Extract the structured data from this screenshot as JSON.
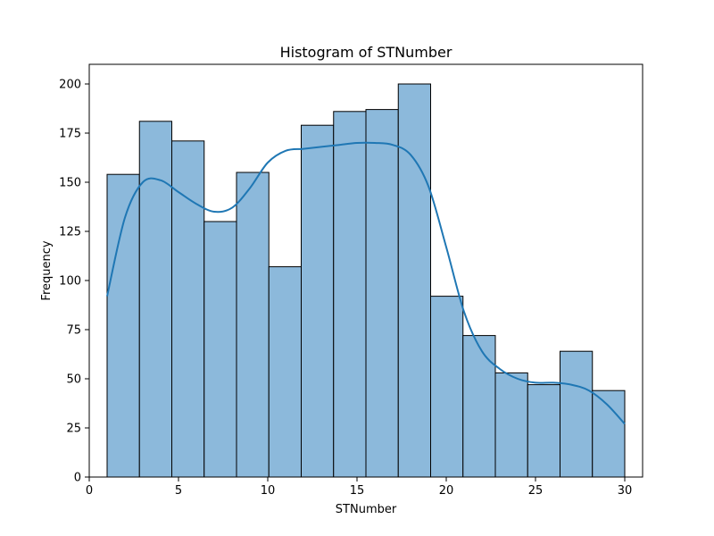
{
  "chart_data": {
    "type": "bar",
    "title": "Histogram of STNumber",
    "xlabel": "STNumber",
    "ylabel": "Frequency",
    "xlim": [
      0,
      31
    ],
    "ylim": [
      0,
      210
    ],
    "xticks": [
      0,
      5,
      10,
      15,
      20,
      25,
      30
    ],
    "yticks": [
      0,
      25,
      50,
      75,
      100,
      125,
      150,
      175,
      200
    ],
    "grid": false,
    "legend": "none",
    "bin_edges": [
      1,
      2.8125,
      4.625,
      6.4375,
      8.25,
      10.0625,
      11.875,
      13.6875,
      15.5,
      17.3125,
      19.125,
      20.9375,
      22.75,
      24.5625,
      26.375,
      28.1875,
      30
    ],
    "values": [
      154,
      181,
      171,
      130,
      155,
      107,
      179,
      186,
      187,
      200,
      92,
      72,
      53,
      47,
      64,
      44
    ],
    "kde": {
      "x": [
        1,
        2,
        3,
        4,
        5,
        6,
        7,
        8,
        9,
        10,
        11,
        12,
        13,
        14,
        15,
        16,
        17,
        18,
        19,
        20,
        21,
        22,
        23,
        24,
        25,
        26,
        27,
        28,
        29,
        30
      ],
      "y": [
        92,
        132,
        150,
        151,
        145,
        139,
        135,
        137,
        147,
        160,
        166,
        167,
        168,
        169,
        170,
        170,
        169,
        164,
        148,
        117,
        84,
        64,
        55,
        50,
        48,
        48,
        47,
        44,
        37,
        27
      ]
    },
    "colors": {
      "bar_fill": "#8cb9db",
      "bar_edge": "#000000",
      "kde_line": "#1f77b4"
    }
  }
}
